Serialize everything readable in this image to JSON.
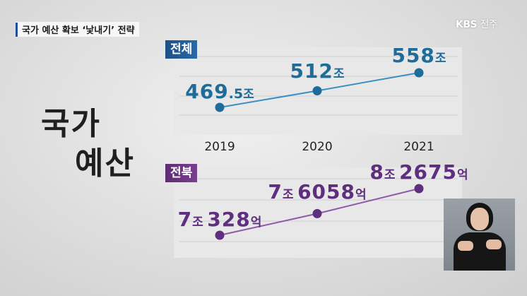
{
  "headline": "국가 예산 확보 ‘낯내기’ 전략",
  "logo": {
    "brand": "KBS",
    "region": "전주"
  },
  "big_title": {
    "line1": "국가",
    "line2": "예산"
  },
  "chart_data": [
    {
      "type": "line",
      "series_tag": "전체",
      "x": [
        "2019",
        "2020",
        "2021"
      ],
      "values": [
        469.5,
        512,
        558
      ],
      "unit": "조",
      "labels": [
        {
          "main": "469",
          "dec": ".5",
          "unit": "조"
        },
        {
          "main": "512",
          "dec": "",
          "unit": "조"
        },
        {
          "main": "558",
          "dec": "",
          "unit": "조"
        }
      ],
      "color": "#3a8fc4"
    },
    {
      "type": "line",
      "series_tag": "전북",
      "x": [
        "2019",
        "2020",
        "2021"
      ],
      "values": [
        70328,
        76058,
        82675
      ],
      "unit": "억",
      "labels": [
        {
          "jo": "7",
          "jo_unit": "조",
          "eok": "328",
          "eok_unit": "억"
        },
        {
          "jo": "7",
          "jo_unit": "조",
          "eok": "6058",
          "eok_unit": "억"
        },
        {
          "jo": "8",
          "jo_unit": "조",
          "eok": "2675",
          "eok_unit": "억"
        }
      ],
      "color": "#8d5aa8"
    }
  ],
  "colors": {
    "blue_tag": "#1d4f86",
    "purple_tag": "#5e2c74",
    "blue_text": "#1e6c9a",
    "purple_text": "#5e2f7e"
  }
}
